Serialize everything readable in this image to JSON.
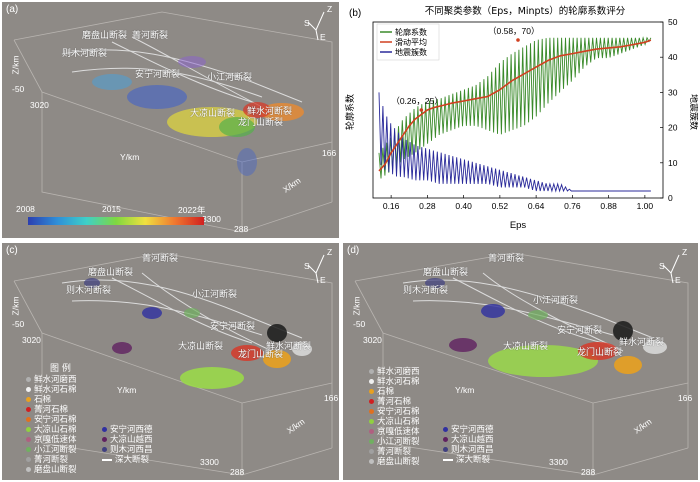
{
  "panel_a": {
    "label": "(a)",
    "faults": [
      "磨盘山断裂",
      "菁河断裂",
      "则木河断裂",
      "安宁河断裂",
      "小江河断裂",
      "鲜水河断裂",
      "大凉山断裂",
      "龙门山断裂"
    ],
    "axes": {
      "z": "Z/km",
      "z_tick": "-50",
      "y": "Y/km",
      "y_tick": "3020",
      "x": "X/km",
      "x_tick1": "166",
      "x_tick2": "288",
      "x_tick3": "3300"
    },
    "colorbar": {
      "t1": "2008",
      "t2": "2015",
      "t3": "2022年"
    },
    "compass": {
      "s": "S",
      "z": "Z",
      "e": "E"
    }
  },
  "panel_b": {
    "label": "(b)",
    "chart_data": {
      "type": "line",
      "title": "不同聚类参数（Eps，Minpts）的轮廓系数评分",
      "xlabel": "Eps",
      "ylabel_left": "轮廓系数",
      "ylabel_right": "地震簇数",
      "xlim": [
        0.1,
        1.06
      ],
      "ylim_left": [
        0.08,
        0.86
      ],
      "ylim_right": [
        0,
        50
      ],
      "x_ticks": [
        "0.16",
        "0.28",
        "0.40",
        "0.52",
        "0.64",
        "0.76",
        "0.88",
        "1.00"
      ],
      "y_ticks_right": [
        "0",
        "10",
        "20",
        "30",
        "40",
        "50"
      ],
      "legend": [
        "轮廓系数",
        "滑动平均",
        "地震簇数"
      ],
      "series_colors": [
        "#3a8a2a",
        "#d04020",
        "#2a2a9a"
      ],
      "annotations": [
        {
          "text": "（0.26，25）",
          "x": 0.26,
          "y": 0.47
        },
        {
          "text": "（0.58，70）",
          "x": 0.58,
          "y": 0.78
        }
      ],
      "moving_average": {
        "x": [
          0.12,
          0.14,
          0.16,
          0.18,
          0.2,
          0.22,
          0.24,
          0.26,
          0.28,
          0.3,
          0.33,
          0.36,
          0.4,
          0.44,
          0.48,
          0.52,
          0.56,
          0.6,
          0.64,
          0.68,
          0.72,
          0.76,
          0.8,
          0.84,
          0.88,
          0.92,
          0.96,
          1.0,
          1.02
        ],
        "y": [
          0.2,
          0.23,
          0.28,
          0.32,
          0.36,
          0.4,
          0.43,
          0.45,
          0.47,
          0.48,
          0.49,
          0.5,
          0.51,
          0.52,
          0.53,
          0.56,
          0.6,
          0.63,
          0.66,
          0.69,
          0.71,
          0.72,
          0.73,
          0.74,
          0.745,
          0.75,
          0.76,
          0.77,
          0.78
        ]
      },
      "silhouette_envelope": {
        "x": [
          0.12,
          0.16,
          0.2,
          0.24,
          0.28,
          0.32,
          0.36,
          0.4,
          0.44,
          0.48,
          0.52,
          0.56,
          0.6,
          0.64,
          0.68,
          0.72,
          0.76,
          0.8,
          0.84,
          0.88,
          0.92,
          0.96,
          1.0,
          1.02
        ],
        "upper": [
          0.28,
          0.35,
          0.43,
          0.48,
          0.51,
          0.52,
          0.54,
          0.56,
          0.58,
          0.62,
          0.68,
          0.72,
          0.75,
          0.78,
          0.79,
          0.79,
          0.79,
          0.79,
          0.79,
          0.79,
          0.79,
          0.79,
          0.79,
          0.79
        ],
        "lower": [
          0.16,
          0.2,
          0.25,
          0.28,
          0.32,
          0.36,
          0.38,
          0.4,
          0.4,
          0.38,
          0.36,
          0.38,
          0.4,
          0.44,
          0.5,
          0.55,
          0.6,
          0.66,
          0.7,
          0.7,
          0.72,
          0.74,
          0.76,
          0.78
        ]
      },
      "cluster_count": {
        "x": [
          0.12,
          0.14,
          0.16,
          0.18,
          0.2,
          0.24,
          0.28,
          0.32,
          0.36,
          0.4,
          0.44,
          0.48,
          0.52,
          0.56,
          0.6,
          0.64,
          0.68,
          0.72,
          0.74,
          0.76,
          0.8,
          0.88,
          0.96,
          1.02
        ],
        "upper": [
          30,
          24,
          21,
          19,
          17,
          15,
          14,
          13,
          12,
          11,
          10,
          9,
          8,
          7,
          6,
          5,
          4,
          4,
          3,
          2,
          2,
          2,
          2,
          2
        ],
        "lower": [
          10,
          8,
          7,
          6,
          6,
          5,
          5,
          4,
          4,
          4,
          4,
          4,
          3,
          3,
          3,
          2,
          2,
          2,
          2,
          2,
          2,
          2,
          2,
          2
        ]
      }
    }
  },
  "panel_c": {
    "label": "(c)",
    "faults": [
      "磨盘山断裂",
      "菁河断裂",
      "则木河断裂",
      "小江河断裂",
      "安宁河断裂",
      "鲜水河断裂",
      "大凉山断裂",
      "龙门山断裂"
    ],
    "axes": {
      "z": "Z/km",
      "z_tick": "-50",
      "y_tick": "3020",
      "y": "Y/km",
      "x": "X/km",
      "x_tick1": "166",
      "x_tick2": "288",
      "x_tick3": "3300"
    },
    "legend_title": "图 例",
    "legend_left": [
      {
        "label": "鲜水河磨西",
        "color": "#b0b0b0"
      },
      {
        "label": "鲜水河石棉",
        "color": "#f0f0f0"
      },
      {
        "label": "石棉",
        "color": "#e8a020"
      },
      {
        "label": "菁河石棉",
        "color": "#d02020"
      },
      {
        "label": "安宁河石棉",
        "color": "#e07020"
      },
      {
        "label": "大凉山石棉",
        "color": "#90d040"
      },
      {
        "label": "京嘎低速体",
        "color": "#b06080"
      },
      {
        "label": "小江河断裂",
        "color": "#70b060"
      },
      {
        "label": "菁河断裂",
        "color": "#a0a0a0"
      },
      {
        "label": "磨盘山断裂",
        "color": "#c0c0c0"
      }
    ],
    "legend_right": [
      {
        "label": "安宁河西德",
        "color": "#3030a0"
      },
      {
        "label": "大凉山越西",
        "color": "#602060"
      },
      {
        "label": "则木河西昌",
        "color": "#404080"
      },
      {
        "label": "深大断裂",
        "color": "#ffffff"
      }
    ],
    "compass": {
      "s": "S",
      "z": "Z",
      "e": "E"
    }
  },
  "panel_d": {
    "label": "(d)",
    "faults": [
      "磨盘山断裂",
      "菁河断裂",
      "则木河断裂",
      "小江河断裂",
      "安宁河断裂",
      "鲜水河断裂",
      "大凉山断裂",
      "龙门山断裂"
    ],
    "axes": {
      "z": "Z/km",
      "z_tick": "-50",
      "y_tick": "3020",
      "y": "Y/km",
      "x": "X/km",
      "x_tick1": "166",
      "x_tick2": "288",
      "x_tick3": "3300"
    },
    "legend_left": [
      {
        "label": "鲜水河磨西",
        "color": "#b0b0b0"
      },
      {
        "label": "鲜水河石棉",
        "color": "#f0f0f0"
      },
      {
        "label": "石棉",
        "color": "#e8a020"
      },
      {
        "label": "菁河石棉",
        "color": "#d02020"
      },
      {
        "label": "安宁河石棉",
        "color": "#e07020"
      },
      {
        "label": "大凉山石棉",
        "color": "#90d040"
      },
      {
        "label": "京嘎低速体",
        "color": "#b06080"
      },
      {
        "label": "小江河断裂",
        "color": "#70b060"
      },
      {
        "label": "菁河断裂",
        "color": "#a0a0a0"
      },
      {
        "label": "磨盘山断裂",
        "color": "#c0c0c0"
      }
    ],
    "legend_right": [
      {
        "label": "安宁河西德",
        "color": "#3030a0"
      },
      {
        "label": "大凉山越西",
        "color": "#602060"
      },
      {
        "label": "则木河西昌",
        "color": "#404080"
      },
      {
        "label": "深大断裂",
        "color": "#ffffff"
      }
    ],
    "compass": {
      "s": "S",
      "z": "Z",
      "e": "E"
    }
  }
}
